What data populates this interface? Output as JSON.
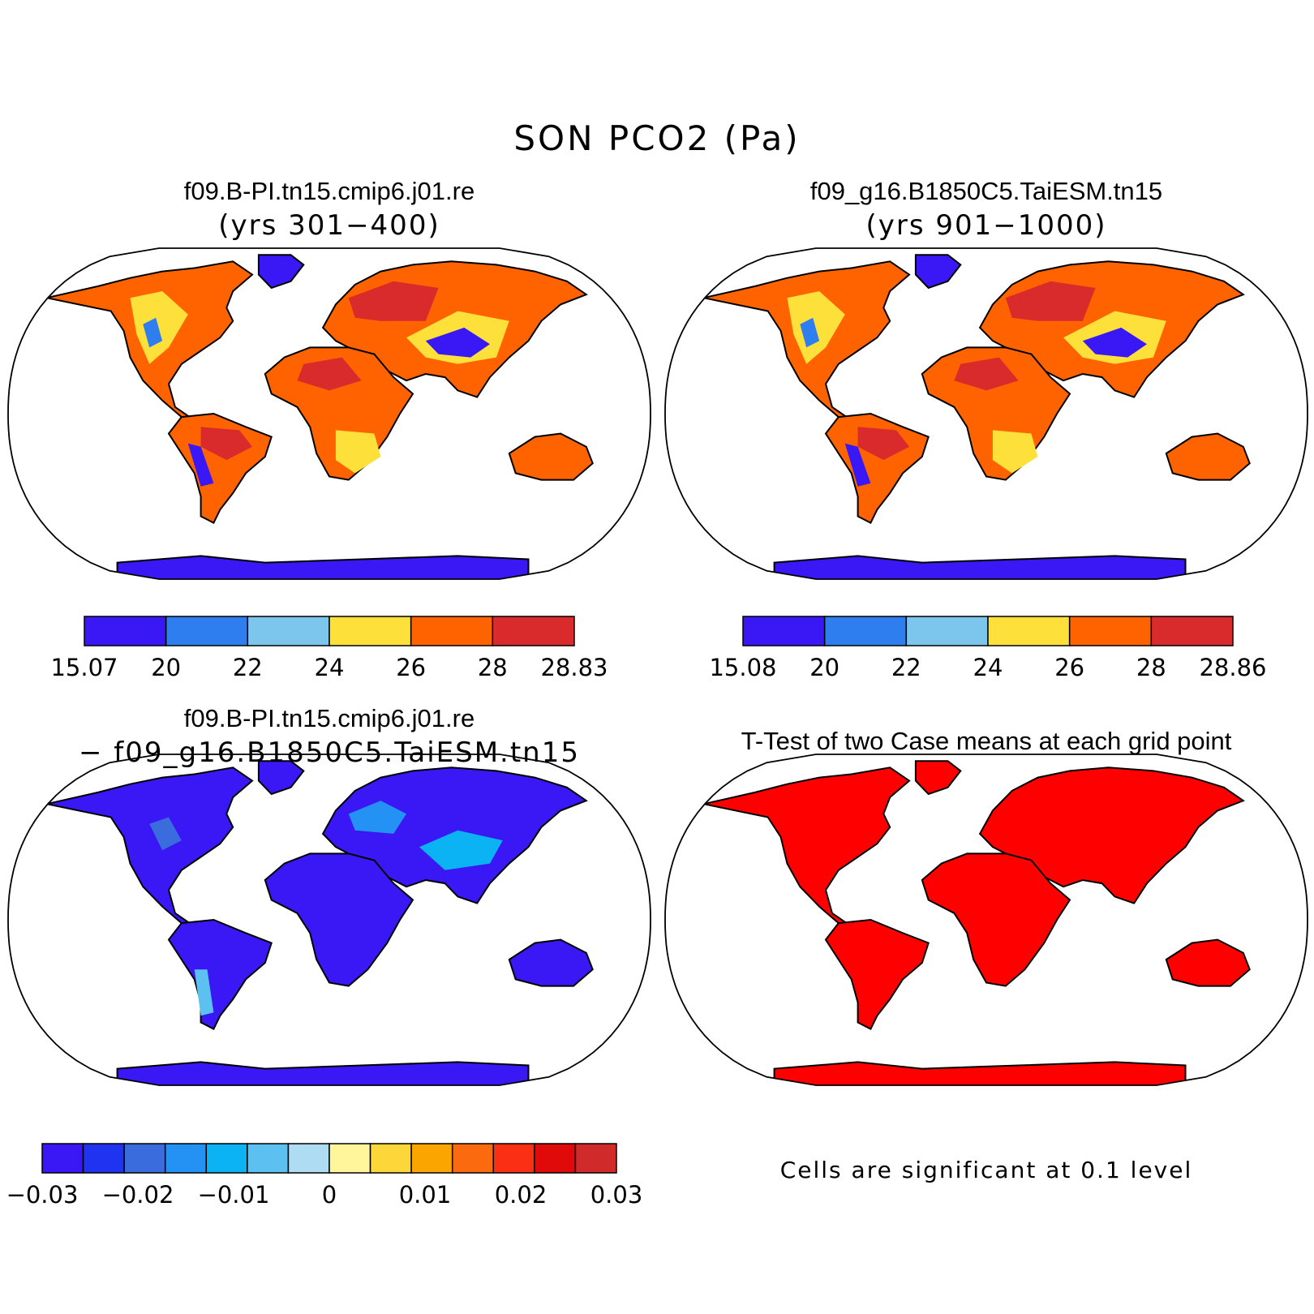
{
  "figure": {
    "title": "SON PCO2 (Pa)"
  },
  "panels": [
    {
      "id": "case1",
      "title": "f09.B-PI.tn15.cmip6.j01.re",
      "subtitle": "(yrs 301−400)",
      "colorbar": {
        "colors": [
          "#3a17f5",
          "#2e7ef0",
          "#7cc6ee",
          "#fde03a",
          "#ff6300",
          "#d92b2b"
        ],
        "labels": [
          "15.07",
          "20",
          "22",
          "24",
          "26",
          "28",
          "28.83"
        ]
      }
    },
    {
      "id": "case2",
      "title": "f09_g16.B1850C5.TaiESM.tn15",
      "subtitle": "(yrs 901−1000)",
      "colorbar": {
        "colors": [
          "#3a17f5",
          "#2e7ef0",
          "#7cc6ee",
          "#fde03a",
          "#ff6300",
          "#d92b2b"
        ],
        "labels": [
          "15.08",
          "20",
          "22",
          "24",
          "26",
          "28",
          "28.86"
        ]
      }
    },
    {
      "id": "difference",
      "title": "f09.B-PI.tn15.cmip6.j01.re",
      "subtitle": "− f09_g16.B1850C5.TaiESM.tn15",
      "colorbar": {
        "colors": [
          "#3a17f5",
          "#1f33f0",
          "#3b6cde",
          "#2492f5",
          "#0bb3f5",
          "#5cc1f0",
          "#aedcf2",
          "#fff59a",
          "#fdd63a",
          "#fba600",
          "#fc6a0f",
          "#fb2f14",
          "#e00a0a",
          "#d02a2a"
        ],
        "labels": [
          "−0.03",
          "−0.02",
          "−0.01",
          "0",
          "0.01",
          "0.02",
          "0.03"
        ]
      }
    },
    {
      "id": "ttest",
      "title": "T-Test of two Case means at each grid point",
      "note": "Cells are significant at 0.1 level",
      "fill_color": "#ff0000"
    }
  ]
}
